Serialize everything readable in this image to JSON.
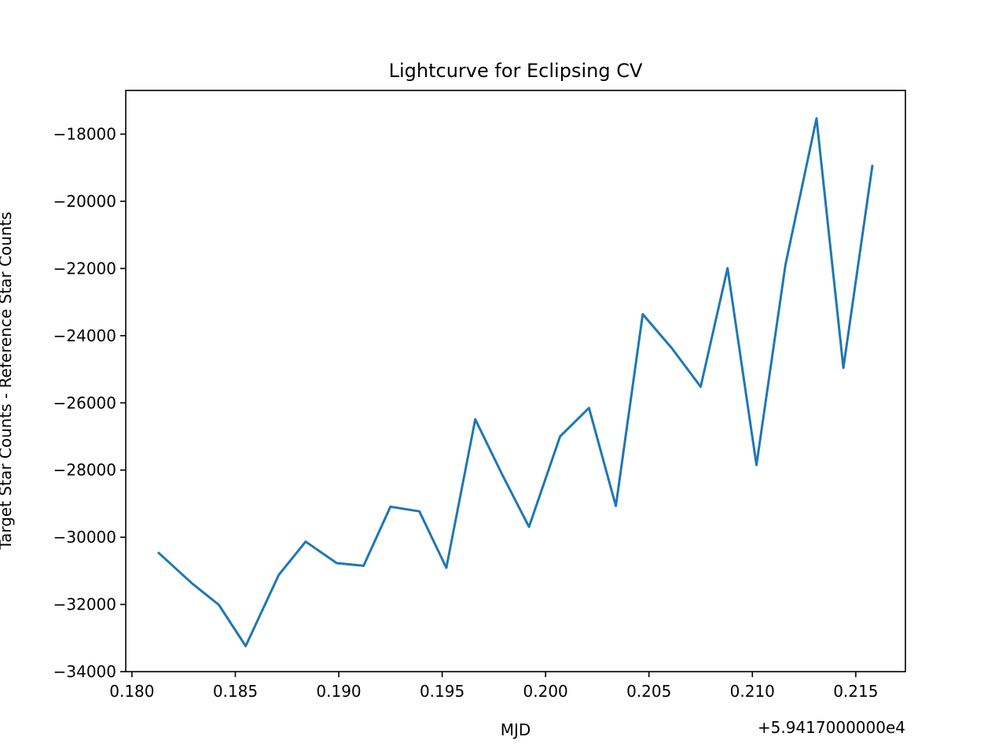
{
  "chart_data": {
    "type": "line",
    "title": "Lightcurve for Eclipsing CV",
    "xlabel": "MJD",
    "ylabel": "Target Star Counts - Reference Star Counts",
    "x_offset_label": "+5.9417000000e4",
    "xlim": [
      0.1797,
      0.2174
    ],
    "ylim": [
      -34000,
      -16700
    ],
    "xticks": [
      0.18,
      0.185,
      0.19,
      0.195,
      0.2,
      0.205,
      0.21,
      0.215
    ],
    "xtick_labels": [
      "0.180",
      "0.185",
      "0.190",
      "0.195",
      "0.200",
      "0.205",
      "0.210",
      "0.215"
    ],
    "yticks": [
      -34000,
      -32000,
      -30000,
      -28000,
      -26000,
      -24000,
      -22000,
      -20000,
      -18000
    ],
    "ytick_labels": [
      "−34000",
      "−32000",
      "−30000",
      "−28000",
      "−26000",
      "−24000",
      "−22000",
      "−20000",
      "−18000"
    ],
    "grid": false,
    "series": [
      {
        "color": "#1f77b4",
        "x": [
          0.1813,
          0.1829,
          0.1842,
          0.1855,
          0.1871,
          0.1884,
          0.1899,
          0.1912,
          0.1925,
          0.1939,
          0.1952,
          0.1966,
          0.1979,
          0.1992,
          0.2007,
          0.2021,
          0.2034,
          0.2047,
          0.2061,
          0.2075,
          0.2088,
          0.2102,
          0.2116,
          0.2131,
          0.2144,
          0.2158
        ],
        "y": [
          -30470,
          -31370,
          -32010,
          -33240,
          -31120,
          -30130,
          -30770,
          -30850,
          -29090,
          -29230,
          -30910,
          -26490,
          -28130,
          -29690,
          -27000,
          -26150,
          -29070,
          -23360,
          -24370,
          -25520,
          -21990,
          -27850,
          -21890,
          -17530,
          -24960,
          -18950
        ]
      }
    ]
  }
}
